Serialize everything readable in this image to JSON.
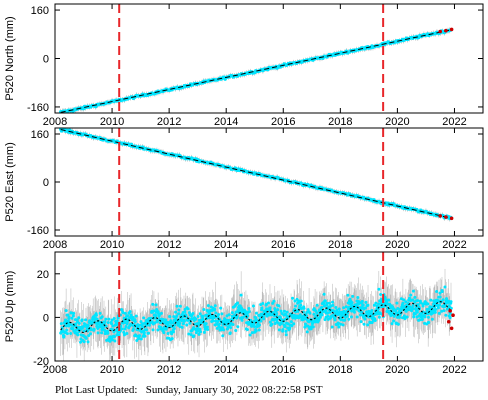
{
  "footer": {
    "label": "Plot Last Updated:",
    "timestamp": "Sunday, January 30, 2022 08:22:58 PST"
  },
  "colors": {
    "data": "#00e5ff",
    "error_bars": "#b4b4b4",
    "model": "#000000",
    "event_lines": "#e8262a",
    "recent_points": "#cc0000"
  },
  "chart_data": [
    {
      "type": "scatter",
      "ylabel": "P520 North (mm)",
      "xlim": [
        2008,
        2023
      ],
      "ylim": [
        -180,
        180
      ],
      "xticks": [
        2008,
        2010,
        2012,
        2014,
        2016,
        2018,
        2020,
        2022
      ],
      "yticks": [
        -160,
        0,
        160
      ],
      "event_lines_x": [
        2010.25,
        2019.5
      ],
      "series": [
        {
          "kind": "data",
          "x": [
            2008.2,
            2009.0,
            2010.0,
            2011.0,
            2012.0,
            2013.0,
            2014.0,
            2015.0,
            2016.0,
            2017.0,
            2018.0,
            2019.0,
            2020.0,
            2021.0,
            2021.9
          ],
          "y": [
            -178,
            -163,
            -143,
            -123,
            -103,
            -83,
            -63,
            -43,
            -23,
            -3,
            17,
            37,
            57,
            77,
            95
          ]
        },
        {
          "kind": "model",
          "x": [
            2008.2,
            2021.9
          ],
          "y": [
            -178,
            95
          ]
        },
        {
          "kind": "recent",
          "x": [
            2021.5,
            2021.7,
            2021.9
          ],
          "y": [
            89,
            92,
            96
          ]
        }
      ]
    },
    {
      "type": "scatter",
      "ylabel": "P520 East (mm)",
      "xlim": [
        2008,
        2023
      ],
      "ylim": [
        -180,
        180
      ],
      "xticks": [
        2008,
        2010,
        2012,
        2014,
        2016,
        2018,
        2020,
        2022
      ],
      "yticks": [
        -160,
        0,
        160
      ],
      "event_lines_x": [
        2010.25,
        2019.5
      ],
      "series": [
        {
          "kind": "data",
          "x": [
            2008.2,
            2009.0,
            2010.0,
            2011.0,
            2012.0,
            2013.0,
            2014.0,
            2015.0,
            2016.0,
            2017.0,
            2018.0,
            2019.0,
            2020.0,
            2021.0,
            2021.9
          ],
          "y": [
            175,
            158,
            136,
            115,
            93,
            72,
            50,
            28,
            7,
            -15,
            -36,
            -58,
            -80,
            -101,
            -121
          ]
        },
        {
          "kind": "model",
          "x": [
            2008.2,
            2021.9
          ],
          "y": [
            175,
            -121
          ]
        },
        {
          "kind": "recent",
          "x": [
            2021.5,
            2021.7,
            2021.9
          ],
          "y": [
            -113,
            -117,
            -121
          ]
        }
      ]
    },
    {
      "type": "scatter",
      "ylabel": "P520 Up (mm)",
      "xlim": [
        2008,
        2023
      ],
      "ylim": [
        -20,
        30
      ],
      "xticks": [
        2008,
        2010,
        2012,
        2014,
        2016,
        2018,
        2020,
        2022
      ],
      "yticks": [
        -20,
        0,
        20
      ],
      "event_lines_x": [
        2010.25,
        2019.5
      ],
      "trend": {
        "start_x": 2008.2,
        "start_y": -5,
        "end_x": 2021.9,
        "end_y": 5,
        "seasonal_amplitude": 2.5,
        "scatter": 4,
        "error": 7
      },
      "series": [
        {
          "kind": "model",
          "x": [
            2008.2,
            2021.9
          ],
          "y": [
            -5,
            5
          ]
        },
        {
          "kind": "recent",
          "x": [
            2021.8,
            2021.85,
            2021.9,
            2021.95
          ],
          "y": [
            -2,
            3,
            -5,
            1
          ]
        }
      ]
    }
  ]
}
